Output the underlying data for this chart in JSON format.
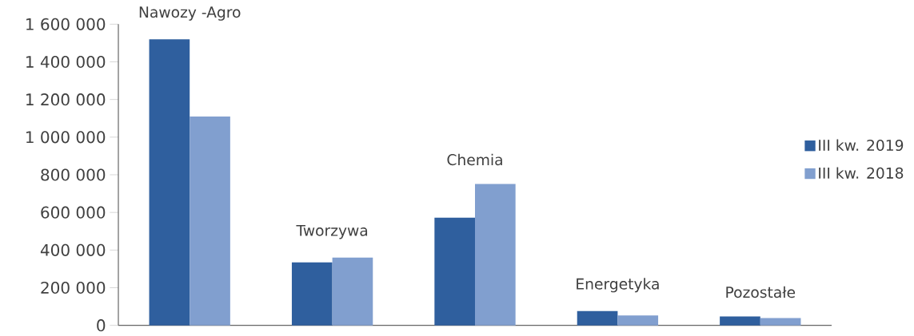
{
  "chart_data": {
    "type": "bar",
    "categories": [
      "Nawozy -Agro",
      "Tworzywa",
      "Chemia",
      "Energetyka",
      "Pozostałe"
    ],
    "series": [
      {
        "name": "III kw. 2019",
        "color": "#2f5f9e",
        "values": [
          1520000,
          335000,
          572000,
          76000,
          47000
        ]
      },
      {
        "name": "III kw. 2018",
        "color": "#819fcf",
        "values": [
          1110000,
          360000,
          751000,
          53000,
          39000
        ]
      }
    ],
    "ylim": [
      0,
      1600000
    ],
    "yticks": [
      {
        "value": 0,
        "label": "0"
      },
      {
        "value": 200000,
        "label": "200 000"
      },
      {
        "value": 400000,
        "label": "400 000"
      },
      {
        "value": 600000,
        "label": "600 000"
      },
      {
        "value": 800000,
        "label": "800 000"
      },
      {
        "value": 1000000,
        "label": "1 000 000"
      },
      {
        "value": 1200000,
        "label": "1 200 000"
      },
      {
        "value": 1400000,
        "label": "1 400 000"
      },
      {
        "value": 1600000,
        "label": "1 600 000"
      }
    ],
    "grid": false,
    "legend": "right"
  }
}
